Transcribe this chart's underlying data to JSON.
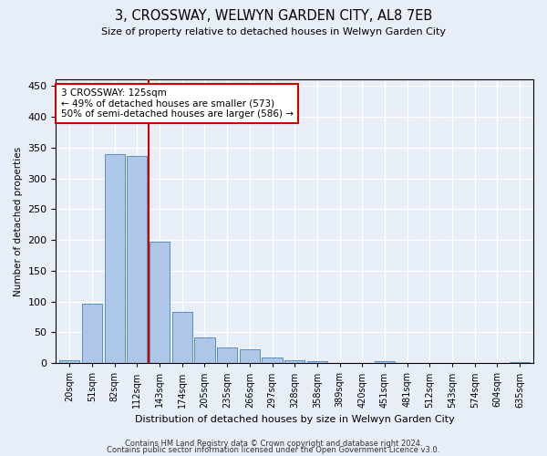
{
  "title": "3, CROSSWAY, WELWYN GARDEN CITY, AL8 7EB",
  "subtitle": "Size of property relative to detached houses in Welwyn Garden City",
  "xlabel": "Distribution of detached houses by size in Welwyn Garden City",
  "ylabel": "Number of detached properties",
  "categories": [
    "20sqm",
    "51sqm",
    "82sqm",
    "112sqm",
    "143sqm",
    "174sqm",
    "205sqm",
    "235sqm",
    "266sqm",
    "297sqm",
    "328sqm",
    "358sqm",
    "389sqm",
    "420sqm",
    "451sqm",
    "481sqm",
    "512sqm",
    "543sqm",
    "574sqm",
    "604sqm",
    "635sqm"
  ],
  "values": [
    5,
    97,
    340,
    337,
    197,
    83,
    42,
    25,
    22,
    9,
    5,
    4,
    1,
    0,
    4,
    0,
    0,
    1,
    0,
    0,
    2
  ],
  "bar_color": "#aec6e8",
  "bar_edge_color": "#5a8fc2",
  "vline_x_index": 3.5,
  "vline_color": "#cc0000",
  "annotation_text": "3 CROSSWAY: 125sqm\n← 49% of detached houses are smaller (573)\n50% of semi-detached houses are larger (586) →",
  "annotation_box_color": "#ffffff",
  "annotation_box_edge": "#cc0000",
  "ylim": [
    0,
    460
  ],
  "yticks": [
    0,
    50,
    100,
    150,
    200,
    250,
    300,
    350,
    400,
    450
  ],
  "footer1": "Contains HM Land Registry data © Crown copyright and database right 2024.",
  "footer2": "Contains public sector information licensed under the Open Government Licence v3.0.",
  "bg_color": "#e8eef8",
  "plot_bg_color": "#e8eef8"
}
